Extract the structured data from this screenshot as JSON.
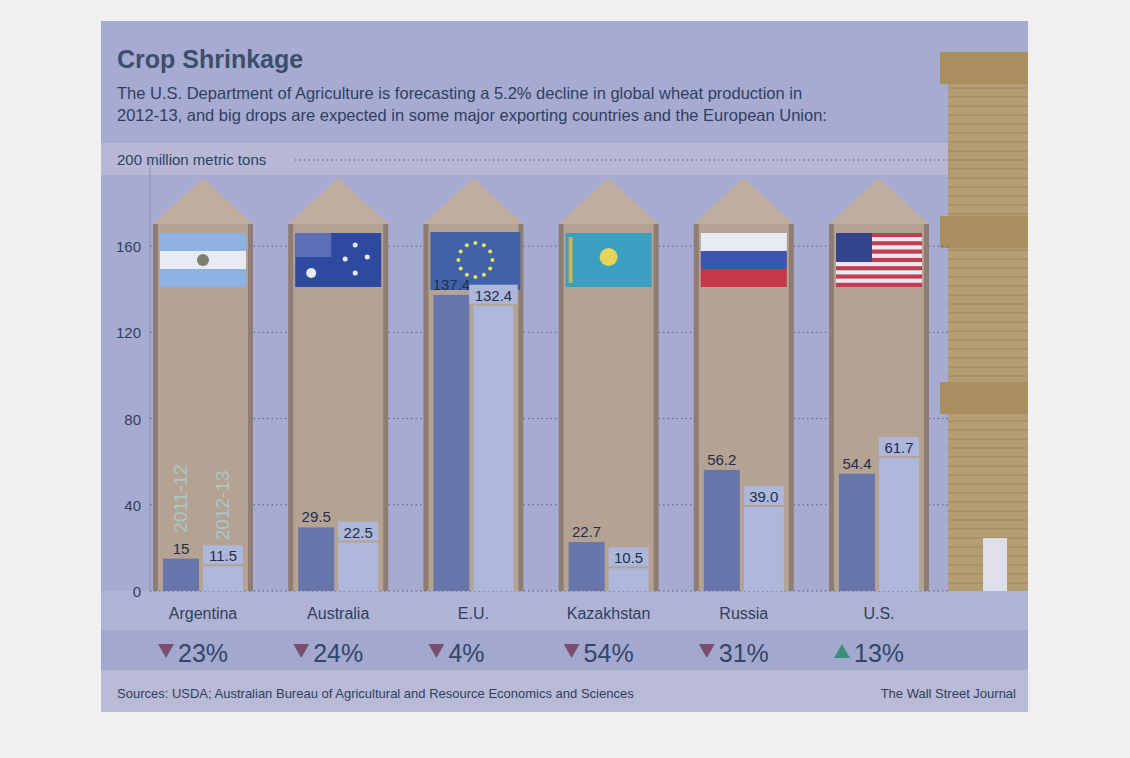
{
  "chart_data": {
    "type": "bar",
    "title": "Crop Shrinkage",
    "subtitle": "The U.S. Department of Agriculture is forecasting a 5.2% decline in global wheat production in 2012-13, and big drops are expected in some major exporting countries and the European Union:",
    "categories": [
      "Argentina",
      "Australia",
      "E.U.",
      "Kazakhstan",
      "Russia",
      "U.S."
    ],
    "series": [
      {
        "name": "2011-12",
        "color": "#6676aa",
        "values": [
          15,
          29.5,
          137.4,
          22.7,
          56.2,
          54.4
        ]
      },
      {
        "name": "2012-13",
        "color": "#adb7da",
        "values": [
          11.5,
          22.5,
          132.4,
          10.5,
          39.0,
          61.7
        ],
        "value_labels": [
          "11.5",
          "22.5",
          "132.4",
          "10.5",
          "39.0",
          "61.7"
        ]
      }
    ],
    "changes": [
      -23,
      -24,
      -4,
      -54,
      -31,
      13
    ],
    "change_labels": [
      "23%",
      "24%",
      "4%",
      "54%",
      "31%",
      "13%"
    ],
    "ylim": [
      0,
      200
    ],
    "yticks": [
      0,
      40,
      80,
      120,
      160,
      {
        "value": 200,
        "label": "200 million metric tons"
      }
    ],
    "grid": true,
    "data_labels": true,
    "source": "Sources: USDA; Australian Bureau of Agricultural and Resource Economics and Sciences",
    "credit": "The Wall Street Journal"
  }
}
